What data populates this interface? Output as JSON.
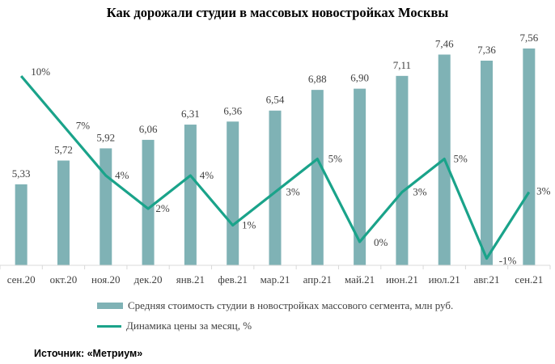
{
  "colors": {
    "bars": "#7fb2b5",
    "line": "#1aa38a"
  },
  "chart_data": {
    "type": "bar+line",
    "title": "Как дорожали студии в массовых новостройках Москвы",
    "categories": [
      "сен.20",
      "окт.20",
      "ноя.20",
      "дек.20",
      "янв.21",
      "фев.21",
      "мар.21",
      "апр.21",
      "май.21",
      "июн.21",
      "июл.21",
      "авг.21",
      "сен.21"
    ],
    "series": [
      {
        "name": "Средняя стоимость студии в новостройках массового сегмента, млн руб.",
        "type": "bar",
        "values": [
          5.33,
          5.72,
          5.92,
          6.06,
          6.31,
          6.36,
          6.54,
          6.88,
          6.9,
          7.11,
          7.46,
          7.36,
          7.56
        ],
        "labels": [
          "5,33",
          "5,72",
          "5,92",
          "6,06",
          "6,31",
          "6,36",
          "6,54",
          "6,88",
          "6,90",
          "7,11",
          "7,46",
          "7,36",
          "7,56"
        ]
      },
      {
        "name": "Динамика цены за месяц, %",
        "type": "line",
        "values": [
          10,
          7,
          4,
          2,
          4,
          1,
          3,
          5,
          0,
          3,
          5,
          -1,
          3
        ],
        "labels": [
          "10%",
          "7%",
          "4%",
          "2%",
          "4%",
          "1%",
          "3%",
          "5%",
          "0%",
          "3%",
          "5%",
          "-1%",
          "3%"
        ]
      }
    ],
    "grid": false,
    "legend": "bottom"
  },
  "source": "Источник: «Метриум»"
}
